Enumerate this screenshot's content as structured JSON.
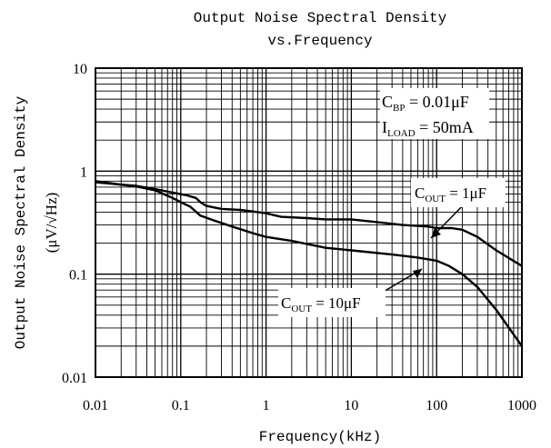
{
  "chart_data": {
    "type": "line",
    "title": "Output Noise Spectral Density",
    "subtitle": "vs.Frequency",
    "xlabel": "Frequency(kHz)",
    "ylabel": "Output Noise Spectral Density",
    "ylabel_unit": "(μV/√Hz)",
    "x_scale": "log",
    "y_scale": "log",
    "xlim": [
      0.01,
      1000
    ],
    "ylim": [
      0.01,
      10
    ],
    "grid": true,
    "x_ticks": [
      {
        "value": 0.01,
        "label": "0.01"
      },
      {
        "value": 0.1,
        "label": "0.1"
      },
      {
        "value": 1,
        "label": "1"
      },
      {
        "value": 10,
        "label": "10"
      },
      {
        "value": 100,
        "label": "100"
      },
      {
        "value": 1000,
        "label": "1000"
      }
    ],
    "y_ticks": [
      {
        "value": 0.01,
        "label": "0.01"
      },
      {
        "value": 0.1,
        "label": "0.1"
      },
      {
        "value": 1,
        "label": "1"
      },
      {
        "value": 10,
        "label": "10"
      }
    ],
    "conditions": {
      "cbp": {
        "main": "C",
        "sub": "BP",
        "rest": " = 0.01μF"
      },
      "iload": {
        "main": "I",
        "sub": "LOAD",
        "rest": " = 50mA"
      }
    },
    "series": [
      {
        "name": "C_OUT = 1μF",
        "label": {
          "main": "C",
          "sub": "OUT",
          "rest": " = 1μF"
        },
        "points": [
          [
            0.01,
            0.78
          ],
          [
            0.02,
            0.74
          ],
          [
            0.03,
            0.72
          ],
          [
            0.05,
            0.67
          ],
          [
            0.08,
            0.62
          ],
          [
            0.12,
            0.58
          ],
          [
            0.15,
            0.55
          ],
          [
            0.17,
            0.5
          ],
          [
            0.2,
            0.46
          ],
          [
            0.3,
            0.43
          ],
          [
            0.5,
            0.42
          ],
          [
            0.8,
            0.4
          ],
          [
            1,
            0.39
          ],
          [
            1.5,
            0.36
          ],
          [
            3,
            0.35
          ],
          [
            5,
            0.34
          ],
          [
            10,
            0.34
          ],
          [
            20,
            0.32
          ],
          [
            40,
            0.3
          ],
          [
            80,
            0.29
          ],
          [
            100,
            0.28
          ],
          [
            150,
            0.28
          ],
          [
            200,
            0.27
          ],
          [
            300,
            0.23
          ],
          [
            500,
            0.17
          ],
          [
            1000,
            0.12
          ]
        ]
      },
      {
        "name": "C_OUT = 10μF",
        "label": {
          "main": "C",
          "sub": "OUT",
          "rest": " = 10μF"
        },
        "points": [
          [
            0.01,
            0.8
          ],
          [
            0.02,
            0.74
          ],
          [
            0.03,
            0.71
          ],
          [
            0.05,
            0.65
          ],
          [
            0.08,
            0.55
          ],
          [
            0.1,
            0.5
          ],
          [
            0.13,
            0.45
          ],
          [
            0.17,
            0.37
          ],
          [
            0.25,
            0.33
          ],
          [
            0.4,
            0.29
          ],
          [
            0.7,
            0.25
          ],
          [
            1,
            0.23
          ],
          [
            2,
            0.21
          ],
          [
            5,
            0.18
          ],
          [
            10,
            0.17
          ],
          [
            30,
            0.155
          ],
          [
            60,
            0.145
          ],
          [
            100,
            0.135
          ],
          [
            140,
            0.12
          ],
          [
            200,
            0.1
          ],
          [
            300,
            0.075
          ],
          [
            500,
            0.045
          ],
          [
            1000,
            0.02
          ]
        ]
      }
    ],
    "colors": {
      "line": "#000000",
      "background": "#ffffff",
      "label_box": "#ffffff"
    }
  }
}
